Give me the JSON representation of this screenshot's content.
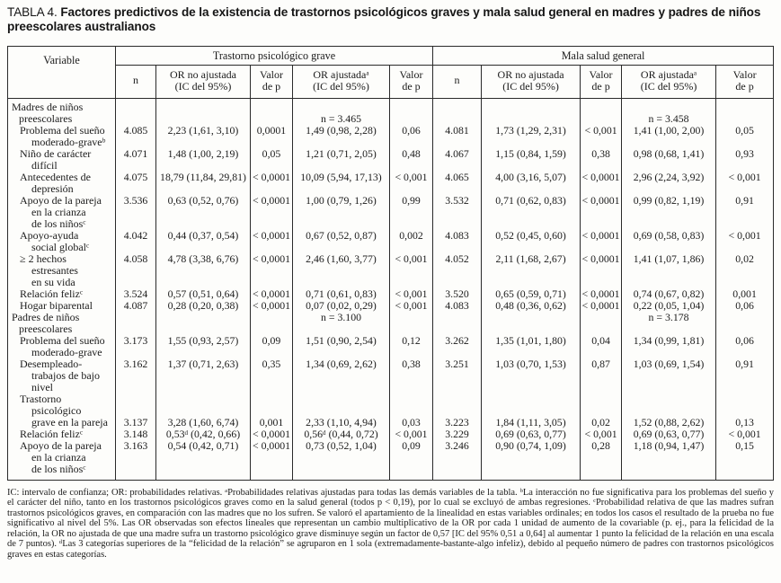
{
  "title": {
    "label": "TABLA 4.",
    "text": "Factores predictivos de la existencia de trastornos psicológicos graves y mala salud general en madres y padres de niños preescolares australianos"
  },
  "table": {
    "variable_header": "Variable",
    "group1": "Trastorno psicológico grave",
    "group2": "Mala salud general",
    "subheaders": [
      "n",
      "OR no ajustada\n(IC del 95%)",
      "Valor\nde p",
      "OR ajustadaᵃ\n(IC del 95%)",
      "Valor\nde p",
      "n",
      "OR no ajustada\n(IC del 95%)",
      "Valor\nde p",
      "OR ajustadaᵃ\n(IC del 95%)",
      "Valor\nde p"
    ],
    "sections": [
      {
        "header": "Madres de niños\npreescolares",
        "n_trastorno": "n = 3.465",
        "n_mala": "n = 3.458",
        "n_valign": "bottom",
        "rows": [
          {
            "label": "Problema del sueño\nmoderado-graveᵇ",
            "cells": [
              "4.085",
              "2,23 (1,61, 3,10)",
              "0,0001",
              "1,49 (0,98, 2,28)",
              "0,06",
              "4.081",
              "1,73 (1,29, 2,31)",
              "< 0,001",
              "1,41 (1,00, 2,00)",
              "0,05"
            ]
          },
          {
            "label": "Niño de carácter\ndifícil",
            "cells": [
              "4.071",
              "1,48 (1,00, 2,19)",
              "0,05",
              "1,21 (0,71, 2,05)",
              "0,48",
              "4.067",
              "1,15 (0,84, 1,59)",
              "0,38",
              "0,98 (0,68, 1,41)",
              "0,93"
            ]
          },
          {
            "label": "Antecedentes de\ndepresión",
            "cells": [
              "4.075",
              "18,79 (11,84, 29,81)",
              "< 0,0001",
              "10,09 (5,94, 17,13)",
              "< 0,001",
              "4.065",
              "4,00 (3,16, 5,07)",
              "< 0,0001",
              "2,96 (2,24, 3,92)",
              "< 0,001"
            ]
          },
          {
            "label": "Apoyo de la pareja\nen la crianza\nde los niñosᶜ",
            "cells": [
              "3.536",
              "0,63 (0,52, 0,76)",
              "< 0,0001",
              "1,00 (0,79, 1,26)",
              "0,99",
              "3.532",
              "0,71 (0,62, 0,83)",
              "< 0,0001",
              "0,99 (0,82, 1,19)",
              "0,91"
            ]
          },
          {
            "label": "Apoyo-ayuda\nsocial globalᶜ",
            "cells": [
              "4.042",
              "0,44 (0,37, 0,54)",
              "< 0,0001",
              "0,67 (0,52, 0,87)",
              "0,002",
              "4.083",
              "0,52 (0,45, 0,60)",
              "< 0,0001",
              "0,69 (0,58, 0,83)",
              "< 0,001"
            ]
          },
          {
            "label": "≥ 2 hechos\nestresantes\nen su vida",
            "cells": [
              "4.058",
              "4,78 (3,38, 6,76)",
              "< 0,0001",
              "2,46 (1,60, 3,77)",
              "< 0,001",
              "4.052",
              "2,11 (1,68, 2,67)",
              "< 0,0001",
              "1,41 (1,07, 1,86)",
              "0,02"
            ]
          },
          {
            "label": "Relación felizᶜ",
            "cells": [
              "3.524",
              "0,57 (0,51, 0,64)",
              "< 0,0001",
              "0,71 (0,61, 0,83)",
              "< 0,001",
              "3.520",
              "0,65 (0,59, 0,71)",
              "< 0,0001",
              "0,74 (0,67, 0,82)",
              "0,001"
            ]
          },
          {
            "label": "Hogar biparental",
            "cells": [
              "4.087",
              "0,28 (0,20, 0,38)",
              "< 0,0001",
              "0,07 (0,02, 0,29)",
              "< 0,001",
              "4.083",
              "0,48 (0,36, 0,62)",
              "< 0,0001",
              "0,22 (0,05, 1,04)",
              "0,06"
            ]
          }
        ]
      },
      {
        "header": "Padres de niños\npreescolares",
        "n_trastorno": "n = 3.100",
        "n_mala": "n = 3.178",
        "n_valign": "top",
        "rows": [
          {
            "label": "Problema del sueño\nmoderado-grave",
            "cells": [
              "3.173",
              "1,55 (0,93, 2,57)",
              "0,09",
              "1,51 (0,90, 2,54)",
              "0,12",
              "3.262",
              "1,35 (1,01, 1,80)",
              "0,04",
              "1,34 (0,99, 1,81)",
              "0,06"
            ]
          },
          {
            "label": "Desempleado-\ntrabajos de bajo\nnivel",
            "cells": [
              "3.162",
              "1,37 (0,71, 2,63)",
              "0,35",
              "1,34 (0,69, 2,62)",
              "0,38",
              "3.251",
              "1,03 (0,70, 1,53)",
              "0,87",
              "1,03 (0,69, 1,54)",
              "0,91"
            ]
          },
          {
            "label": "Trastorno\npsicológico\ngrave en la pareja",
            "valign": "bottom",
            "cells": [
              "3.137",
              "3,28 (1,60, 6,74)",
              "0,001",
              "2,33 (1,10, 4,94)",
              "0,03",
              "3.223",
              "1,84 (1,11, 3,05)",
              "0,02",
              "1,52 (0,88, 2,62)",
              "0,13"
            ]
          },
          {
            "label": "Relación felizᶜ",
            "cells": [
              "3.148",
              "0,53ᵈ (0,42, 0,66)",
              "< 0,0001",
              "0,56ᵈ (0,44, 0,72)",
              "< 0,001",
              "3.229",
              "0,69 (0,63, 0,77)",
              "< 0,001",
              "0,69 (0,63, 0,77)",
              "< 0,001"
            ]
          },
          {
            "label": "Apoyo de la pareja\nen la crianza\nde los niñosᶜ",
            "cells": [
              "3.163",
              "0,54 (0,42, 0,71)",
              "< 0,0001",
              "0,73 (0,52, 1,04)",
              "0,09",
              "3.246",
              "0,90 (0,74, 1,09)",
              "0,28",
              "1,18 (0,94, 1,47)",
              "0,15"
            ]
          }
        ]
      }
    ]
  },
  "footnote": "IC: intervalo de confianza; OR: probabilidades relativas. ᵃProbabilidades relativas ajustadas para todas las demás variables de la tabla. ᵇLa interacción no fue significativa para los problemas del sueño y el carácter del niño, tanto en los trastornos psicológicos graves como en la salud general (todos p < 0,19), por lo cual se excluyó de ambas regresiones. ᶜProbabilidad relativa de que las madres sufran trastornos psicológicos graves, en comparación con las madres que no los sufren. Se valoró el apartamiento de la linealidad en estas variables ordinales; en todos los casos el resultado de la prueba no fue significativo al nivel del 5%. Las OR observadas son efectos lineales que representan un cambio multiplicativo de la OR por cada 1 unidad de aumento de la covariable (p. ej., para la felicidad de la relación, la OR no ajustada de que una madre sufra un trastorno psicológico grave disminuye según un factor de 0,57 [IC del 95% 0,51 a 0,64] al aumentar 1 punto la felicidad de la relación en una escala de 7 puntos). ᵈLas 3 categorías superiores de la “felicidad de la relación” se agruparon en 1 sola (extremadamente-bastante-algo infeliz), debido al pequeño número de padres con trastornos psicológicos graves en estas categorías."
}
